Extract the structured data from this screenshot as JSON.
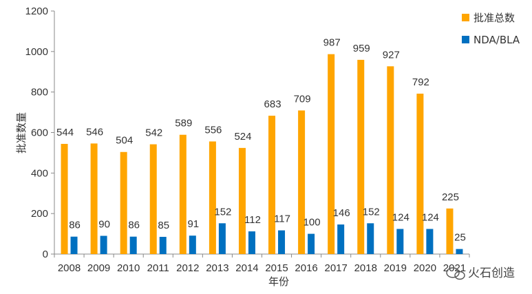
{
  "chart_data": {
    "type": "bar",
    "categories": [
      "2008",
      "2009",
      "2010",
      "2011",
      "2012",
      "2013",
      "2014",
      "2015",
      "2016",
      "2017",
      "2018",
      "2019",
      "2020",
      "2021"
    ],
    "series": [
      {
        "name": "批准总数",
        "color": "#FFA500",
        "values": [
          544,
          546,
          504,
          542,
          589,
          556,
          524,
          683,
          709,
          987,
          959,
          927,
          792,
          225
        ]
      },
      {
        "name": "NDA/BLA",
        "color": "#0070C0",
        "values": [
          86,
          90,
          86,
          85,
          91,
          152,
          112,
          117,
          100,
          146,
          152,
          124,
          124,
          25
        ]
      }
    ],
    "xlabel": "年份",
    "ylabel": "批准数量",
    "ylim": [
      0,
      1200
    ],
    "yticks": [
      0,
      200,
      400,
      600,
      800,
      1000,
      1200
    ],
    "legend_position": "top-right",
    "grid": false
  },
  "watermark": {
    "text": "火石创造"
  }
}
